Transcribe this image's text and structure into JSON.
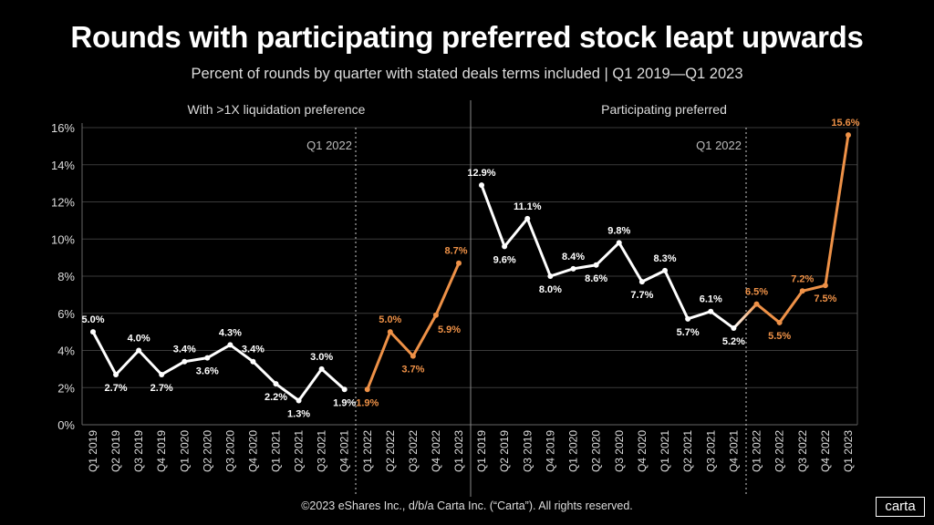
{
  "title": "Rounds with participating preferred stock leapt upwards",
  "subtitle": "Percent of rounds by quarter with stated deals terms included | Q1 2019—Q1 2023",
  "footer": "©2023 eShares Inc., d/b/a Carta Inc. (“Carta”). All rights reserved.",
  "logo": "carta",
  "colors": {
    "pre": "#ffffff",
    "post": "#ee9147",
    "grid": "#3a3a3a",
    "background": "#000000"
  },
  "chart_data": [
    {
      "type": "line",
      "title": "With >1X liquidation preference",
      "annotation": "Q1 2022",
      "categories": [
        "Q1 2019",
        "Q2 2019",
        "Q3 2019",
        "Q4 2019",
        "Q1 2020",
        "Q2 2020",
        "Q3 2020",
        "Q4 2020",
        "Q1 2021",
        "Q2 2021",
        "Q3 2021",
        "Q4 2021",
        "Q1 2022",
        "Q2 2022",
        "Q3 2022",
        "Q4 2022",
        "Q1 2023"
      ],
      "values": [
        5.0,
        2.7,
        4.0,
        2.7,
        3.4,
        3.6,
        4.3,
        3.4,
        2.2,
        1.3,
        3.0,
        1.9,
        1.9,
        5.0,
        3.7,
        5.9,
        8.7
      ],
      "labels": [
        "5.0%",
        "2.7%",
        "4.0%",
        "2.7%",
        "3.4%",
        "3.6%",
        "4.3%",
        "3.4%",
        "2.2%",
        "1.3%",
        "3.0%",
        "1.9%",
        "1.9%",
        "5.0%",
        "3.7%",
        "5.9%",
        "8.7%"
      ],
      "ylim": [
        0,
        16
      ],
      "yticks": [
        "0%",
        "2%",
        "4%",
        "6%",
        "8%",
        "10%",
        "12%",
        "14%",
        "16%"
      ],
      "grid": true
    },
    {
      "type": "line",
      "title": "Participating preferred",
      "annotation": "Q1 2022",
      "categories": [
        "Q1 2019",
        "Q2 2019",
        "Q3 2019",
        "Q4 2019",
        "Q1 2020",
        "Q2 2020",
        "Q3 2020",
        "Q4 2020",
        "Q1 2021",
        "Q2 2021",
        "Q3 2021",
        "Q4 2021",
        "Q1 2022",
        "Q2 2022",
        "Q3 2022",
        "Q4 2022",
        "Q1 2023"
      ],
      "values": [
        12.9,
        9.6,
        11.1,
        8.0,
        8.4,
        8.6,
        9.8,
        7.7,
        8.3,
        5.7,
        6.1,
        5.2,
        6.5,
        5.5,
        7.2,
        7.5,
        15.6
      ],
      "labels": [
        "12.9%",
        "9.6%",
        "11.1%",
        "8.0%",
        "8.4%",
        "8.6%",
        "9.8%",
        "7.7%",
        "8.3%",
        "5.7%",
        "6.1%",
        "5.2%",
        "6.5%",
        "5.5%",
        "7.2%",
        "7.5%",
        "15.6%"
      ],
      "ylim": [
        0,
        16
      ],
      "grid": true
    }
  ]
}
